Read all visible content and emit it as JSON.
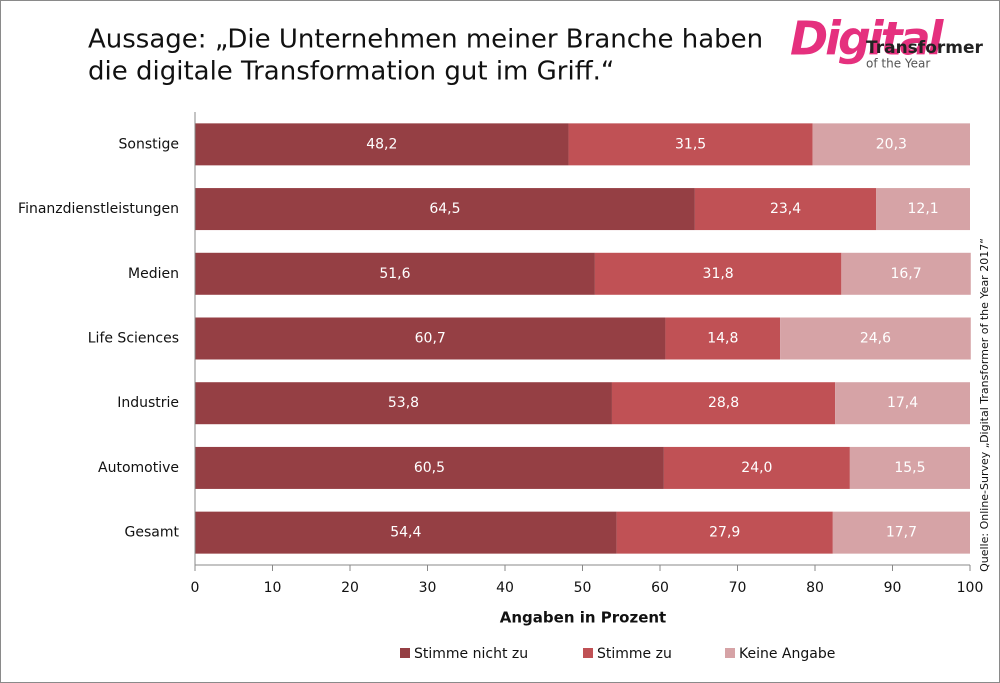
{
  "chart_data": {
    "type": "stacked_barh",
    "title": [
      "Aussage: „Die Unternehmen meiner Branche haben",
      "die digitale Transformation gut im Griff.“"
    ],
    "logo": {
      "big": "Digital",
      "line1": "Transformer",
      "line2": "of the Year"
    },
    "source": "Quelle: Online-Survey „Digital Transformer of the Year 2017“",
    "xlabel": "Angaben in Prozent",
    "categories": [
      "Sonstige",
      "Finanzdienstleistungen",
      "Medien",
      "Life Sciences",
      "Industrie",
      "Automotive",
      "Gesamt"
    ],
    "series": [
      {
        "name": "Stimme nicht zu",
        "color": "#953f44",
        "values": [
          48.2,
          64.5,
          51.6,
          60.7,
          53.8,
          60.5,
          54.4
        ],
        "value_labels": [
          "48,2",
          "64,5",
          "51,6",
          "60,7",
          "53,8",
          "60,5",
          "54,4"
        ]
      },
      {
        "name": "Stimme zu",
        "color": "#c05155",
        "values": [
          31.5,
          23.4,
          31.8,
          14.8,
          28.8,
          24.0,
          27.9
        ],
        "value_labels": [
          "31,5",
          "23,4",
          "31,8",
          "14,8",
          "28,8",
          "24,0",
          "27,9"
        ]
      },
      {
        "name": "Keine Angabe",
        "color": "#d6a3a6",
        "values": [
          20.3,
          12.1,
          16.7,
          24.6,
          17.4,
          15.5,
          17.7
        ],
        "value_labels": [
          "20,3",
          "12,1",
          "16,7",
          "24,6",
          "17,4",
          "15,5",
          "17,7"
        ]
      }
    ],
    "xlim": [
      0,
      100
    ],
    "xticks": [
      0,
      10,
      20,
      30,
      40,
      50,
      60,
      70,
      80,
      90,
      100
    ]
  }
}
